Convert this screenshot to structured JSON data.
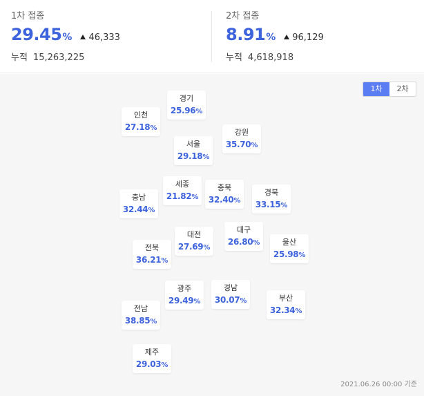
{
  "dose1": {
    "title": "1차 접종",
    "rate": "29.45",
    "unit": "%",
    "delta": "46,333",
    "cumulative_label": "누적",
    "cumulative_value": "15,263,225"
  },
  "dose2": {
    "title": "2차 접종",
    "rate": "8.91",
    "unit": "%",
    "delta": "96,129",
    "cumulative_label": "누적",
    "cumulative_value": "4,618,918"
  },
  "toggle": {
    "options": [
      "1차",
      "2차"
    ],
    "selected": "1차"
  },
  "regions": [
    {
      "id": "gyeonggi",
      "name": "경기",
      "value": "25.96"
    },
    {
      "id": "incheon",
      "name": "인천",
      "value": "27.18"
    },
    {
      "id": "gangwon",
      "name": "강원",
      "value": "35.70"
    },
    {
      "id": "seoul",
      "name": "서울",
      "value": "29.18"
    },
    {
      "id": "sejong",
      "name": "세종",
      "value": "21.82"
    },
    {
      "id": "chungnam",
      "name": "충남",
      "value": "32.44"
    },
    {
      "id": "chungbuk",
      "name": "충북",
      "value": "32.40"
    },
    {
      "id": "gyeongbuk",
      "name": "경북",
      "value": "33.15"
    },
    {
      "id": "daejeon",
      "name": "대전",
      "value": "27.69"
    },
    {
      "id": "daegu",
      "name": "대구",
      "value": "26.80"
    },
    {
      "id": "jeonbuk",
      "name": "전북",
      "value": "36.21"
    },
    {
      "id": "ulsan",
      "name": "울산",
      "value": "25.98"
    },
    {
      "id": "gwangju",
      "name": "광주",
      "value": "29.49"
    },
    {
      "id": "gyeongnam",
      "name": "경남",
      "value": "30.07"
    },
    {
      "id": "busan",
      "name": "부산",
      "value": "32.34"
    },
    {
      "id": "jeonnam",
      "name": "전남",
      "value": "38.85"
    },
    {
      "id": "jeju",
      "name": "제주",
      "value": "29.03"
    }
  ],
  "region_unit": "%",
  "timestamp": "2021.06.26 00:00 기준",
  "colors": {
    "accent": "#3d63dd",
    "toggle_active": "#5a7df3"
  },
  "icons": {
    "increase": "triangle-up-icon"
  }
}
